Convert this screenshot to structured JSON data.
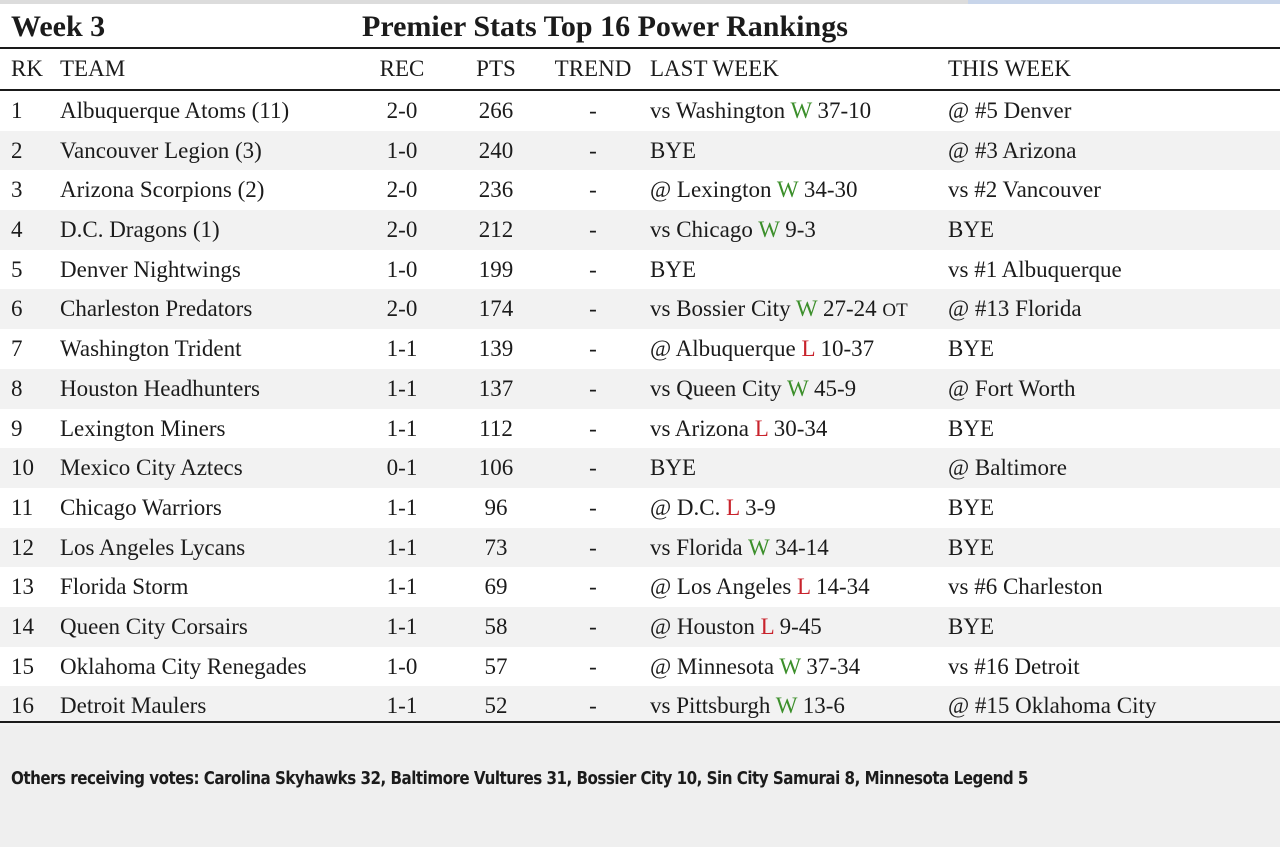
{
  "header": {
    "week": "Week 3",
    "title": "Premier Stats Top 16 Power Rankings"
  },
  "columns": {
    "rk": "RK",
    "team": "TEAM",
    "rec": "REC",
    "pts": "PTS",
    "trend": "TREND",
    "last_week": "LAST WEEK",
    "this_week": "THIS WEEK"
  },
  "rows": [
    {
      "rk": "1",
      "team": "Albuquerque Atoms (11)",
      "rec": "2-0",
      "pts": "266",
      "trend": "-",
      "lw_pre": "vs Washington",
      "lw_res": "W",
      "lw_score": "37-10",
      "lw_ot": "",
      "this_week": "@ #5 Denver"
    },
    {
      "rk": "2",
      "team": "Vancouver Legion (3)",
      "rec": "1-0",
      "pts": "240",
      "trend": "-",
      "lw_pre": "BYE",
      "lw_res": "",
      "lw_score": "",
      "lw_ot": "",
      "this_week": "@ #3 Arizona"
    },
    {
      "rk": "3",
      "team": "Arizona Scorpions (2)",
      "rec": "2-0",
      "pts": "236",
      "trend": "-",
      "lw_pre": "@ Lexington",
      "lw_res": "W",
      "lw_score": "34-30",
      "lw_ot": "",
      "this_week": "vs #2 Vancouver"
    },
    {
      "rk": "4",
      "team": "D.C. Dragons (1)",
      "rec": "2-0",
      "pts": "212",
      "trend": "-",
      "lw_pre": "vs Chicago",
      "lw_res": "W",
      "lw_score": "9-3",
      "lw_ot": "",
      "this_week": "BYE"
    },
    {
      "rk": "5",
      "team": "Denver Nightwings",
      "rec": "1-0",
      "pts": "199",
      "trend": "-",
      "lw_pre": "BYE",
      "lw_res": "",
      "lw_score": "",
      "lw_ot": "",
      "this_week": "vs #1 Albuquerque"
    },
    {
      "rk": "6",
      "team": "Charleston Predators",
      "rec": "2-0",
      "pts": "174",
      "trend": "-",
      "lw_pre": "vs Bossier City",
      "lw_res": "W",
      "lw_score": "27-24",
      "lw_ot": "OT",
      "this_week": "@ #13 Florida"
    },
    {
      "rk": "7",
      "team": "Washington Trident",
      "rec": "1-1",
      "pts": "139",
      "trend": "-",
      "lw_pre": "@ Albuquerque",
      "lw_res": "L",
      "lw_score": "10-37",
      "lw_ot": "",
      "this_week": "BYE"
    },
    {
      "rk": "8",
      "team": "Houston Headhunters",
      "rec": "1-1",
      "pts": "137",
      "trend": "-",
      "lw_pre": "vs Queen City",
      "lw_res": "W",
      "lw_score": "45-9",
      "lw_ot": "",
      "this_week": "@ Fort Worth"
    },
    {
      "rk": "9",
      "team": "Lexington Miners",
      "rec": "1-1",
      "pts": "112",
      "trend": "-",
      "lw_pre": "vs Arizona",
      "lw_res": "L",
      "lw_score": "30-34",
      "lw_ot": "",
      "this_week": "BYE"
    },
    {
      "rk": "10",
      "team": "Mexico City Aztecs",
      "rec": "0-1",
      "pts": "106",
      "trend": "-",
      "lw_pre": "BYE",
      "lw_res": "",
      "lw_score": "",
      "lw_ot": "",
      "this_week": "@ Baltimore"
    },
    {
      "rk": "11",
      "team": "Chicago Warriors",
      "rec": "1-1",
      "pts": "96",
      "trend": "-",
      "lw_pre": "@ D.C.",
      "lw_res": "L",
      "lw_score": "3-9",
      "lw_ot": "",
      "this_week": "BYE"
    },
    {
      "rk": "12",
      "team": "Los Angeles Lycans",
      "rec": "1-1",
      "pts": "73",
      "trend": "-",
      "lw_pre": "vs Florida",
      "lw_res": "W",
      "lw_score": "34-14",
      "lw_ot": "",
      "this_week": "BYE"
    },
    {
      "rk": "13",
      "team": "Florida Storm",
      "rec": "1-1",
      "pts": "69",
      "trend": "-",
      "lw_pre": "@ Los Angeles",
      "lw_res": "L",
      "lw_score": "14-34",
      "lw_ot": "",
      "this_week": "vs #6 Charleston"
    },
    {
      "rk": "14",
      "team": "Queen City Corsairs",
      "rec": "1-1",
      "pts": "58",
      "trend": "-",
      "lw_pre": "@ Houston",
      "lw_res": "L",
      "lw_score": "9-45",
      "lw_ot": "",
      "this_week": "BYE"
    },
    {
      "rk": "15",
      "team": "Oklahoma City Renegades",
      "rec": "1-0",
      "pts": "57",
      "trend": "-",
      "lw_pre": "@ Minnesota",
      "lw_res": "W",
      "lw_score": "37-34",
      "lw_ot": "",
      "this_week": "vs #16 Detroit"
    },
    {
      "rk": "16",
      "team": "Detroit Maulers",
      "rec": "1-1",
      "pts": "52",
      "trend": "-",
      "lw_pre": "vs Pittsburgh",
      "lw_res": "W",
      "lw_score": "13-6",
      "lw_ot": "",
      "this_week": "@ #15 Oklahoma City"
    }
  ],
  "footnote": "Others receiving votes: Carolina Skyhawks 32, Baltimore Vultures 31, Bossier City 10, Sin City Samurai 8, Minnesota Legend 5",
  "colors": {
    "win": "#3c8f2b",
    "loss": "#c8232c",
    "alt_row": "#f2f2f2"
  }
}
